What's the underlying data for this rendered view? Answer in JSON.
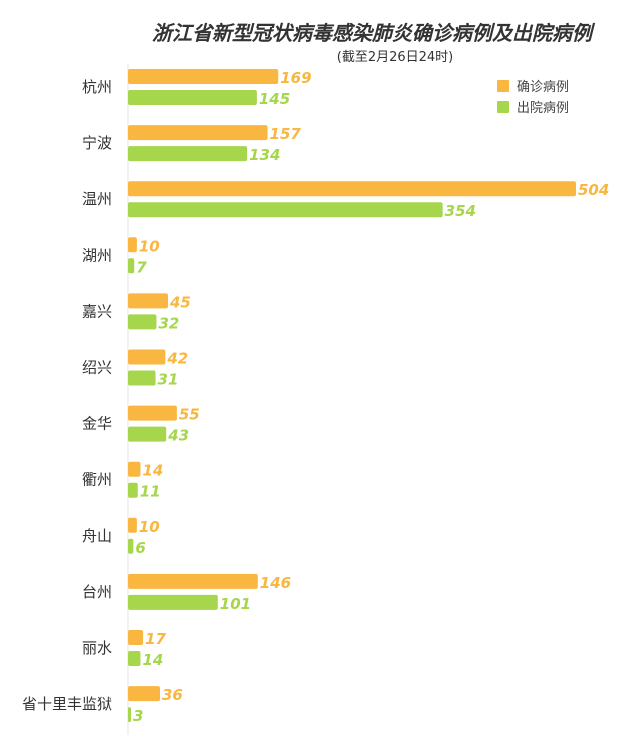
{
  "chart_data": {
    "type": "bar",
    "orientation": "horizontal",
    "title": "浙江省新型冠状病毒感染肺炎确诊病例及出院病例",
    "subtitle": "(截至2月26日24时)",
    "categories": [
      "杭州",
      "宁波",
      "温州",
      "湖州",
      "嘉兴",
      "绍兴",
      "金华",
      "衢州",
      "舟山",
      "台州",
      "丽水",
      "省十里丰监狱"
    ],
    "series": [
      {
        "name": "确诊病例",
        "color": "#F9B640",
        "values": [
          169,
          157,
          504,
          10,
          45,
          42,
          55,
          14,
          10,
          146,
          17,
          36
        ]
      },
      {
        "name": "出院病例",
        "color": "#A5D64B",
        "values": [
          145,
          134,
          354,
          7,
          32,
          31,
          43,
          11,
          6,
          101,
          14,
          3
        ]
      }
    ],
    "legend_position": "top-right",
    "grid": false,
    "xlim": [
      0,
      504
    ]
  }
}
